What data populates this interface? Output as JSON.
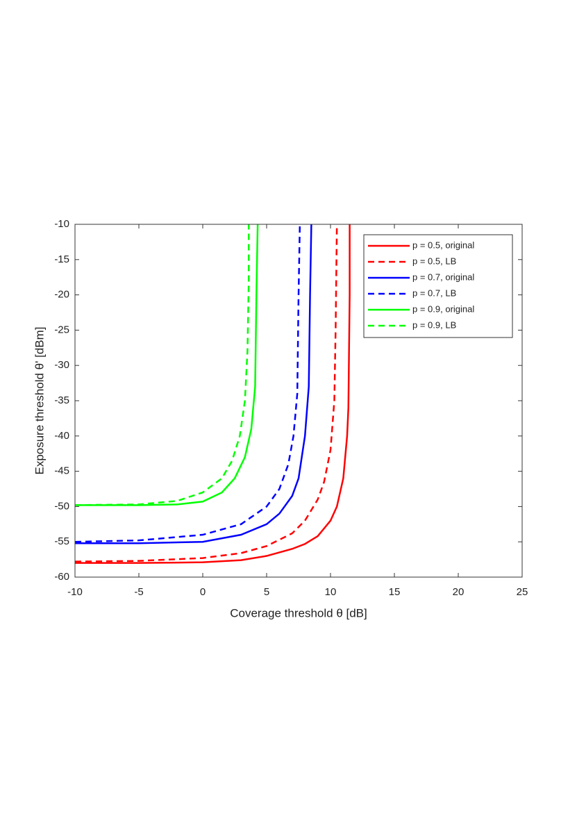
{
  "chart_data": {
    "type": "line",
    "xlabel": "Coverage threshold θ [dB]",
    "ylabel": "Exposure threshold θ' [dBm]",
    "xlim": [
      -10,
      25
    ],
    "ylim": [
      -60,
      -10
    ],
    "xticks": [
      -10,
      -5,
      0,
      5,
      10,
      15,
      20,
      25
    ],
    "yticks": [
      -60,
      -55,
      -50,
      -45,
      -40,
      -35,
      -30,
      -25,
      -20,
      -15,
      -10
    ],
    "grid": false,
    "legend": "northeast",
    "series": [
      {
        "name": "p = 0.5, original",
        "color": "#ff0000",
        "dash": false,
        "x": [
          -10,
          -5,
          0,
          3,
          5,
          7,
          8,
          9,
          10,
          10.5,
          11,
          11.3,
          11.4,
          11.5,
          11.5
        ],
        "values": [
          -58,
          -58,
          -57.9,
          -57.6,
          -57,
          -56,
          -55.3,
          -54.2,
          -52,
          -50,
          -46,
          -40,
          -36,
          -20,
          -10
        ]
      },
      {
        "name": "p = 0.5, LB",
        "color": "#ff0000",
        "dash": true,
        "x": [
          -10,
          -5,
          0,
          3,
          5,
          7,
          8,
          9,
          9.5,
          10,
          10.3,
          10.4,
          10.5
        ],
        "values": [
          -57.8,
          -57.7,
          -57.3,
          -56.6,
          -55.6,
          -53.8,
          -52,
          -49,
          -46.5,
          -42,
          -35,
          -25,
          -10
        ]
      },
      {
        "name": "p = 0.7, original",
        "color": "#0000ff",
        "dash": false,
        "x": [
          -10,
          -5,
          0,
          3,
          5,
          6,
          7,
          7.5,
          8,
          8.3,
          8.4,
          8.5
        ],
        "values": [
          -55.2,
          -55.2,
          -55,
          -54,
          -52.5,
          -51,
          -48.5,
          -46,
          -40,
          -33,
          -20,
          -10
        ]
      },
      {
        "name": "p = 0.7, LB",
        "color": "#0000ff",
        "dash": true,
        "x": [
          -10,
          -5,
          0,
          3,
          5,
          6,
          6.7,
          7.1,
          7.4,
          7.5,
          7.6
        ],
        "values": [
          -55,
          -54.8,
          -54,
          -52.5,
          -50,
          -47.5,
          -44,
          -40,
          -34,
          -20,
          -10
        ]
      },
      {
        "name": "p = 0.9, original",
        "color": "#00ff00",
        "dash": false,
        "x": [
          -10,
          -5,
          -2,
          0,
          1.5,
          2.5,
          3.3,
          3.8,
          4.1,
          4.2,
          4.3
        ],
        "values": [
          -49.8,
          -49.8,
          -49.7,
          -49.3,
          -48,
          -46,
          -43,
          -39,
          -33,
          -20,
          -10
        ]
      },
      {
        "name": "p = 0.9, LB",
        "color": "#00ff00",
        "dash": true,
        "x": [
          -10,
          -5,
          -2,
          0,
          1.5,
          2.3,
          2.9,
          3.3,
          3.5,
          3.6,
          3.6
        ],
        "values": [
          -49.8,
          -49.7,
          -49.2,
          -48,
          -46,
          -43.5,
          -40,
          -35,
          -28,
          -18,
          -10
        ]
      }
    ]
  }
}
